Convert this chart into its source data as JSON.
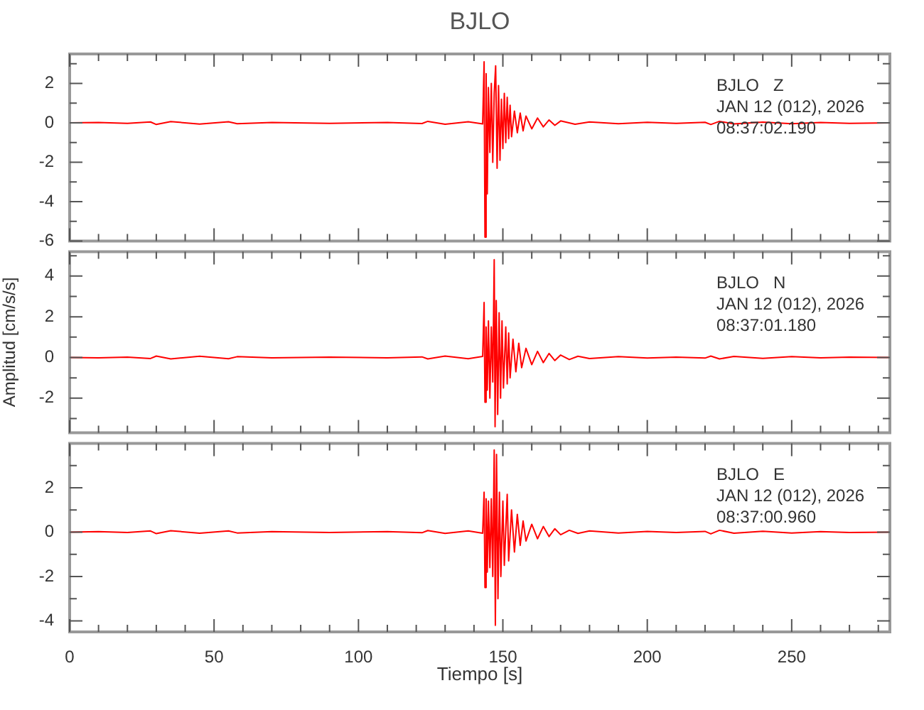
{
  "chart_data": [
    {
      "type": "line",
      "title": "BJLO",
      "color": "#ff0000",
      "xlim": [
        0,
        284
      ],
      "ylim": [
        -6,
        3.5
      ],
      "tick_labels": "y",
      "xticks": [
        0,
        {
          "value": 10,
          "label": null
        },
        {
          "value": 20,
          "label": null
        },
        {
          "value": 30,
          "label": null
        },
        {
          "value": 40,
          "label": null
        },
        50,
        {
          "value": 60,
          "label": null
        },
        {
          "value": 70,
          "label": null
        },
        {
          "value": 80,
          "label": null
        },
        {
          "value": 90,
          "label": null
        },
        100,
        {
          "value": 110,
          "label": null
        },
        {
          "value": 120,
          "label": null
        },
        {
          "value": 130,
          "label": null
        },
        {
          "value": 140,
          "label": null
        },
        150,
        {
          "value": 160,
          "label": null
        },
        {
          "value": 170,
          "label": null
        },
        {
          "value": 180,
          "label": null
        },
        {
          "value": 190,
          "label": null
        },
        200,
        {
          "value": 210,
          "label": null
        },
        {
          "value": 220,
          "label": null
        },
        {
          "value": 230,
          "label": null
        },
        {
          "value": 240,
          "label": null
        },
        250,
        {
          "value": 260,
          "label": null
        },
        {
          "value": 270,
          "label": null
        },
        {
          "value": 280,
          "label": null
        }
      ],
      "yticks": [
        -6,
        {
          "value": -5,
          "label": null
        },
        -4,
        {
          "value": -3,
          "label": null
        },
        -2,
        {
          "value": -1,
          "label": null
        },
        0,
        {
          "value": 1,
          "label": null
        },
        2,
        {
          "value": 3,
          "label": null
        }
      ],
      "annotations": [
        "BJLO   Z",
        "JAN 12 (012), 2026",
        "08:37:02.190"
      ],
      "x": [
        0,
        10,
        20,
        28,
        30,
        35,
        45,
        55,
        58,
        70,
        90,
        110,
        122,
        124,
        130,
        138,
        143,
        143.5,
        143.8,
        144.2,
        144.6,
        145,
        145.5,
        146,
        146.5,
        147,
        147.5,
        148,
        148.5,
        149,
        149.5,
        150,
        150.5,
        151,
        151.5,
        152,
        152.5,
        153,
        154,
        155,
        156,
        157,
        158,
        160,
        162,
        164,
        166,
        168,
        170,
        175,
        180,
        190,
        200,
        210,
        220,
        222,
        225,
        230,
        240,
        250,
        260,
        270,
        284
      ],
      "values": [
        0,
        0.02,
        -0.02,
        0.05,
        -0.08,
        0.07,
        -0.06,
        0.06,
        -0.04,
        0.02,
        -0.02,
        0.02,
        -0.03,
        0.08,
        -0.07,
        0.06,
        -0.05,
        3.1,
        -5.8,
        2.5,
        -3.6,
        1.8,
        -1.5,
        2,
        -2,
        1.5,
        2.9,
        -2.3,
        1.9,
        -1.9,
        1.2,
        -1.3,
        1.5,
        -1,
        1.3,
        -0.8,
        0.9,
        -0.7,
        0.6,
        -0.5,
        0.5,
        -0.4,
        0.35,
        -0.3,
        0.25,
        -0.2,
        0.15,
        -0.12,
        0.1,
        -0.07,
        0.05,
        -0.04,
        0.03,
        -0.02,
        0.03,
        -0.08,
        0.08,
        -0.05,
        0.04,
        -0.04,
        0.02,
        -0.02,
        0
      ]
    },
    {
      "type": "line",
      "color": "#ff0000",
      "xlim": [
        0,
        284
      ],
      "ylim": [
        -3.7,
        5.2
      ],
      "tick_labels": "y",
      "ylabel": "Amplitud [cm/s/s]",
      "xticks": [
        0,
        {
          "value": 10,
          "label": null
        },
        {
          "value": 20,
          "label": null
        },
        {
          "value": 30,
          "label": null
        },
        {
          "value": 40,
          "label": null
        },
        50,
        {
          "value": 60,
          "label": null
        },
        {
          "value": 70,
          "label": null
        },
        {
          "value": 80,
          "label": null
        },
        {
          "value": 90,
          "label": null
        },
        100,
        {
          "value": 110,
          "label": null
        },
        {
          "value": 120,
          "label": null
        },
        {
          "value": 130,
          "label": null
        },
        {
          "value": 140,
          "label": null
        },
        150,
        {
          "value": 160,
          "label": null
        },
        {
          "value": 170,
          "label": null
        },
        {
          "value": 180,
          "label": null
        },
        {
          "value": 190,
          "label": null
        },
        200,
        {
          "value": 210,
          "label": null
        },
        {
          "value": 220,
          "label": null
        },
        {
          "value": 230,
          "label": null
        },
        {
          "value": 240,
          "label": null
        },
        250,
        {
          "value": 260,
          "label": null
        },
        {
          "value": 270,
          "label": null
        },
        {
          "value": 280,
          "label": null
        }
      ],
      "yticks": [
        {
          "value": -3,
          "label": null
        },
        -2,
        {
          "value": -1,
          "label": null
        },
        0,
        {
          "value": 1,
          "label": null
        },
        2,
        {
          "value": 3,
          "label": null
        },
        4,
        {
          "value": 5,
          "label": null
        }
      ],
      "annotations": [
        "BJLO   N",
        "JAN 12 (012), 2026",
        "08:37:01.180"
      ],
      "x": [
        0,
        10,
        20,
        28,
        30,
        35,
        45,
        55,
        58,
        70,
        90,
        110,
        122,
        124,
        130,
        138,
        143,
        143.5,
        143.8,
        144.2,
        144.6,
        145,
        145.5,
        146,
        146.5,
        147,
        147.3,
        147.7,
        148.2,
        148.7,
        149.2,
        149.7,
        150.2,
        151,
        151.5,
        152,
        152.5,
        153.5,
        154.5,
        155.5,
        156.5,
        158,
        160,
        162,
        164,
        166,
        168,
        170,
        173,
        176,
        180,
        190,
        200,
        210,
        220,
        222,
        225,
        230,
        240,
        250,
        260,
        270,
        284
      ],
      "values": [
        0,
        -0.02,
        0.02,
        -0.05,
        0.07,
        -0.07,
        0.06,
        -0.06,
        0.04,
        -0.02,
        0.02,
        -0.02,
        0.03,
        -0.07,
        0.07,
        -0.06,
        0.05,
        2.7,
        -2.2,
        1.5,
        -1.6,
        1.8,
        -2,
        1.5,
        -1.2,
        4.8,
        -3.4,
        2.8,
        -2.8,
        2.2,
        -2,
        1.8,
        -1.5,
        1.5,
        -1.3,
        1.2,
        -1,
        0.9,
        -0.7,
        0.7,
        -0.5,
        0.45,
        -0.35,
        0.3,
        -0.25,
        0.2,
        -0.15,
        0.12,
        -0.1,
        0.06,
        -0.05,
        0.04,
        -0.03,
        0.02,
        -0.03,
        0.07,
        -0.07,
        0.05,
        -0.04,
        0.04,
        -0.02,
        0.02,
        0
      ]
    },
    {
      "type": "line",
      "color": "#ff0000",
      "xlim": [
        0,
        284
      ],
      "ylim": [
        -4.5,
        4
      ],
      "xlabel": "Tiempo [s]",
      "xticks": [
        0,
        {
          "value": 10,
          "label": null
        },
        {
          "value": 20,
          "label": null
        },
        {
          "value": 30,
          "label": null
        },
        {
          "value": 40,
          "label": null
        },
        50,
        {
          "value": 60,
          "label": null
        },
        {
          "value": 70,
          "label": null
        },
        {
          "value": 80,
          "label": null
        },
        {
          "value": 90,
          "label": null
        },
        100,
        {
          "value": 110,
          "label": null
        },
        {
          "value": 120,
          "label": null
        },
        {
          "value": 130,
          "label": null
        },
        {
          "value": 140,
          "label": null
        },
        150,
        {
          "value": 160,
          "label": null
        },
        {
          "value": 170,
          "label": null
        },
        {
          "value": 180,
          "label": null
        },
        {
          "value": 190,
          "label": null
        },
        200,
        {
          "value": 210,
          "label": null
        },
        {
          "value": 220,
          "label": null
        },
        {
          "value": 230,
          "label": null
        },
        {
          "value": 240,
          "label": null
        },
        250,
        {
          "value": 260,
          "label": null
        },
        {
          "value": 270,
          "label": null
        },
        {
          "value": 280,
          "label": null
        }
      ],
      "yticks": [
        -4,
        {
          "value": -3,
          "label": null
        },
        -2,
        {
          "value": -1,
          "label": null
        },
        0,
        {
          "value": 1,
          "label": null
        },
        2,
        {
          "value": 3,
          "label": null
        }
      ],
      "annotations": [
        "BJLO   E",
        "JAN 12 (012), 2026",
        "08:37:00.960"
      ],
      "x": [
        0,
        10,
        20,
        28,
        30,
        35,
        45,
        55,
        58,
        70,
        90,
        110,
        122,
        124,
        130,
        138,
        143,
        143.5,
        143.8,
        144.2,
        144.6,
        145,
        145.5,
        146,
        146.5,
        147,
        147.4,
        147.8,
        148.3,
        148.8,
        149.3,
        150,
        150.5,
        151.5,
        152,
        153,
        154,
        155,
        156,
        157,
        158,
        160,
        162,
        164,
        166,
        168,
        170,
        173,
        176,
        180,
        190,
        200,
        210,
        220,
        222,
        225,
        230,
        240,
        250,
        260,
        270,
        284
      ],
      "values": [
        0,
        0.02,
        -0.02,
        0.05,
        -0.07,
        0.06,
        -0.05,
        0.05,
        -0.04,
        0.02,
        -0.02,
        0.02,
        -0.03,
        0.07,
        -0.06,
        0.05,
        -0.05,
        1.8,
        -2.5,
        1.5,
        -1.8,
        1.4,
        -1.6,
        1.5,
        -2,
        3.7,
        -4.2,
        3.5,
        -3,
        1.8,
        -2,
        1.4,
        -1.5,
        1.7,
        -1.3,
        1,
        -0.9,
        0.8,
        -0.6,
        0.5,
        -0.4,
        0.35,
        -0.3,
        0.25,
        -0.2,
        0.15,
        -0.12,
        0.08,
        -0.06,
        0.05,
        -0.04,
        0.03,
        -0.02,
        0.03,
        -0.08,
        0.08,
        -0.05,
        0.04,
        -0.04,
        0.02,
        -0.02,
        0
      ]
    }
  ]
}
